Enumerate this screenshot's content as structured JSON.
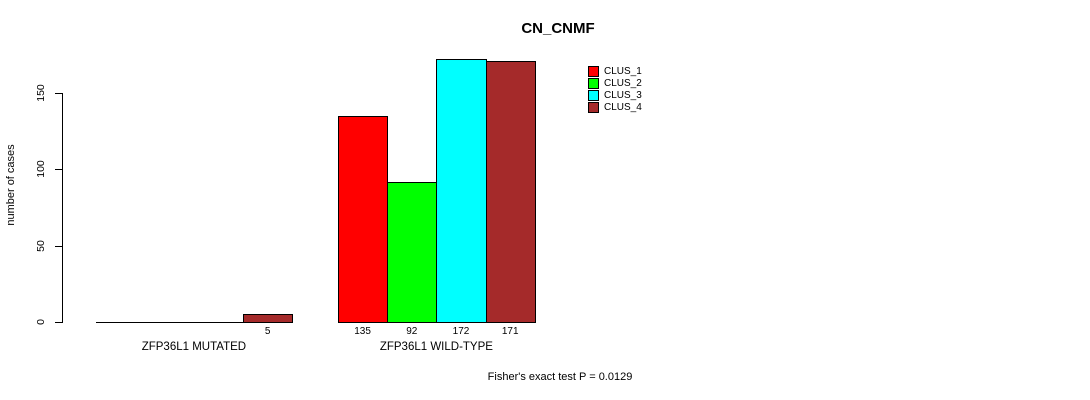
{
  "chart_data": {
    "type": "bar",
    "title": "CN_CNMF",
    "ylabel": "number of cases",
    "xlabel": "",
    "ylim": [
      0,
      175
    ],
    "yticks": [
      0,
      50,
      100,
      150
    ],
    "grid": false,
    "legend_position": "top-right",
    "categories": [
      "ZFP36L1 MUTATED",
      "ZFP36L1 WILD-TYPE"
    ],
    "series": [
      {
        "name": "CLUS_1",
        "color": "#FF0000",
        "values": [
          0,
          135
        ]
      },
      {
        "name": "CLUS_2",
        "color": "#00FF00",
        "values": [
          0,
          92
        ]
      },
      {
        "name": "CLUS_3",
        "color": "#00FFFF",
        "values": [
          0,
          172
        ]
      },
      {
        "name": "CLUS_4",
        "color": "#A52A2A",
        "values": [
          5,
          171
        ]
      }
    ],
    "bar_value_labels": [
      "5",
      "135",
      "92",
      "172",
      "171"
    ],
    "hide_zero_value_labels": true,
    "annotation": "Fisher's exact test P = 0.0129"
  }
}
